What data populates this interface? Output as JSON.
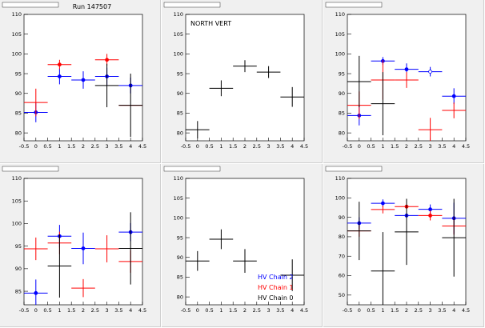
{
  "run_label": "Run 147507",
  "colors": {
    "chain0": "#000000",
    "chain1": "#ff0000",
    "chain2": "#0000ff"
  },
  "legend": [
    {
      "label": "HV Chain 2",
      "color": "#0000ff"
    },
    {
      "label": "HV Chain 1",
      "color": "#ff0000"
    },
    {
      "label": "HV Chain 0",
      "color": "#000000"
    }
  ],
  "chart_data": [
    {
      "type": "scatter",
      "title": "",
      "xlim": [
        -0.5,
        4.5
      ],
      "ylim": [
        78,
        110
      ],
      "xticks": [
        -0.5,
        0,
        0.5,
        1,
        1.5,
        2,
        2.5,
        3,
        3.5,
        4,
        4.5
      ],
      "yticks": [
        80,
        85,
        90,
        95,
        100,
        105,
        110
      ],
      "series": [
        {
          "color": "#0000ff",
          "points": [
            {
              "x": 0,
              "xerr": 0.5,
              "y": 85.2,
              "yerr": 2.5,
              "marker": true
            },
            {
              "x": 1,
              "xerr": 0.5,
              "y": 94.3,
              "yerr": 2.0,
              "marker": true
            },
            {
              "x": 2,
              "xerr": 0.5,
              "y": 93.4,
              "yerr": 2.2,
              "marker": true
            },
            {
              "x": 3,
              "xerr": 0.5,
              "y": 94.3,
              "yerr": 2.2,
              "marker": true
            },
            {
              "x": 4,
              "xerr": 0.5,
              "y": 92.0,
              "yerr": 2.0,
              "marker": true
            }
          ]
        },
        {
          "color": "#ff0000",
          "points": [
            {
              "x": 0,
              "xerr": 0.5,
              "y": 87.7,
              "yerr": 3.5,
              "marker": false
            },
            {
              "x": 1,
              "xerr": 0.5,
              "y": 97.3,
              "yerr": 1.2,
              "marker": true
            },
            {
              "x": 3,
              "xerr": 0.5,
              "y": 98.5,
              "yerr": 1.5,
              "marker": true
            },
            {
              "x": 4,
              "xerr": 0.5,
              "y": 87.0,
              "yerr": 0,
              "marker": false
            }
          ]
        },
        {
          "color": "#000000",
          "points": [
            {
              "x": 3,
              "xerr": 0.5,
              "y": 92.0,
              "yerr": 5.5,
              "marker": false
            },
            {
              "x": 4,
              "xerr": 0.5,
              "y": 87.0,
              "yerr": 8.0,
              "marker": false
            }
          ]
        }
      ]
    },
    {
      "type": "scatter",
      "title": "",
      "annotation": "NORTH VERT",
      "xlim": [
        -0.5,
        4.5
      ],
      "ylim": [
        78,
        110
      ],
      "xticks": [
        -0.5,
        0,
        0.5,
        1,
        1.5,
        2,
        2.5,
        3,
        3.5,
        4,
        4.5
      ],
      "yticks": [
        80,
        85,
        90,
        95,
        100,
        105,
        110
      ],
      "series": [
        {
          "color": "#000000",
          "points": [
            {
              "x": 0,
              "xerr": 0.5,
              "y": 80.8,
              "yerr": 2.2,
              "marker": false
            },
            {
              "x": 1,
              "xerr": 0.5,
              "y": 91.3,
              "yerr": 2.0,
              "marker": false
            },
            {
              "x": 2,
              "xerr": 0.5,
              "y": 96.9,
              "yerr": 1.5,
              "marker": false
            },
            {
              "x": 3,
              "xerr": 0.5,
              "y": 95.4,
              "yerr": 1.5,
              "marker": false
            },
            {
              "x": 4,
              "xerr": 0.5,
              "y": 89.1,
              "yerr": 2.5,
              "marker": false
            }
          ]
        }
      ]
    },
    {
      "type": "scatter",
      "title": "",
      "xlim": [
        -0.5,
        4.5
      ],
      "ylim": [
        78,
        110
      ],
      "xticks": [
        -0.5,
        0,
        0.5,
        1,
        1.5,
        2,
        2.5,
        3,
        3.5,
        4,
        4.5
      ],
      "yticks": [
        80,
        85,
        90,
        95,
        100,
        105,
        110
      ],
      "series": [
        {
          "color": "#0000ff",
          "points": [
            {
              "x": 0,
              "xerr": 0.5,
              "y": 84.4,
              "yerr": 2.5,
              "marker": true
            },
            {
              "x": 1,
              "xerr": 0.5,
              "y": 98.2,
              "yerr": 1.0,
              "marker": true
            },
            {
              "x": 2,
              "xerr": 0.5,
              "y": 96.1,
              "yerr": 1.5,
              "marker": true
            },
            {
              "x": 3,
              "xerr": 0.5,
              "y": 95.5,
              "yerr": 1.2,
              "marker": true,
              "hollow": true
            },
            {
              "x": 4,
              "xerr": 0.5,
              "y": 89.3,
              "yerr": 2.0,
              "marker": true
            }
          ]
        },
        {
          "color": "#ff0000",
          "points": [
            {
              "x": 0,
              "xerr": 0.5,
              "y": 87.0,
              "yerr": 3.5,
              "marker": false
            },
            {
              "x": 1,
              "xerr": 0.5,
              "y": 93.4,
              "yerr": 5.0,
              "marker": false
            },
            {
              "x": 2,
              "xerr": 0.5,
              "y": 93.4,
              "yerr": 2.0,
              "marker": false
            },
            {
              "x": 3,
              "xerr": 0.5,
              "y": 80.8,
              "yerr": 3.0,
              "marker": false
            },
            {
              "x": 4,
              "xerr": 0.5,
              "y": 85.7,
              "yerr": 2.0,
              "marker": false
            }
          ]
        },
        {
          "color": "#000000",
          "points": [
            {
              "x": 0,
              "xerr": 0.5,
              "y": 93.0,
              "yerr": 6.5,
              "marker": false
            },
            {
              "x": 1,
              "xerr": 0.5,
              "y": 87.4,
              "yerr": 8.0,
              "marker": false
            }
          ]
        }
      ]
    },
    {
      "type": "scatter",
      "title": "",
      "xlim": [
        -0.5,
        4.5
      ],
      "ylim": [
        82,
        110
      ],
      "xticks": [
        -0.5,
        0,
        0.5,
        1,
        1.5,
        2,
        2.5,
        3,
        3.5,
        4,
        4.5
      ],
      "yticks": [
        85,
        90,
        95,
        100,
        105,
        110
      ],
      "series": [
        {
          "color": "#0000ff",
          "points": [
            {
              "x": 0,
              "xerr": 0.5,
              "y": 84.6,
              "yerr": 3.0,
              "marker": true
            },
            {
              "x": 1,
              "xerr": 0.5,
              "y": 97.2,
              "yerr": 2.5,
              "marker": true
            },
            {
              "x": 2,
              "xerr": 0.5,
              "y": 94.5,
              "yerr": 3.5,
              "marker": true
            },
            {
              "x": 4,
              "xerr": 0.5,
              "y": 98.1,
              "yerr": 2.0,
              "marker": true
            }
          ]
        },
        {
          "color": "#ff0000",
          "points": [
            {
              "x": 0,
              "xerr": 0.5,
              "y": 94.4,
              "yerr": 2.5,
              "marker": false
            },
            {
              "x": 1,
              "xerr": 0.5,
              "y": 95.7,
              "yerr": 2.5,
              "marker": false
            },
            {
              "x": 2,
              "xerr": 0.5,
              "y": 85.7,
              "yerr": 2.0,
              "marker": false
            },
            {
              "x": 3,
              "xerr": 0.5,
              "y": 94.4,
              "yerr": 3.0,
              "marker": false
            },
            {
              "x": 4,
              "xerr": 0.5,
              "y": 91.6,
              "yerr": 2.5,
              "marker": false
            }
          ]
        },
        {
          "color": "#000000",
          "points": [
            {
              "x": 1,
              "xerr": 0.5,
              "y": 90.6,
              "yerr": 7.0,
              "marker": false
            },
            {
              "x": 4,
              "xerr": 0.5,
              "y": 94.5,
              "yerr": 8.0,
              "marker": false
            }
          ]
        }
      ]
    },
    {
      "type": "scatter",
      "title": "",
      "xlim": [
        -0.5,
        4.5
      ],
      "ylim": [
        78,
        110
      ],
      "xticks": [
        -0.5,
        0,
        0.5,
        1,
        1.5,
        2,
        2.5,
        3,
        3.5,
        4,
        4.5
      ],
      "yticks": [
        80,
        85,
        90,
        95,
        100,
        105,
        110
      ],
      "series": [
        {
          "color": "#000000",
          "points": [
            {
              "x": 0,
              "xerr": 0.5,
              "y": 89.1,
              "yerr": 2.5,
              "marker": false
            },
            {
              "x": 1,
              "xerr": 0.5,
              "y": 94.6,
              "yerr": 2.5,
              "marker": false
            },
            {
              "x": 2,
              "xerr": 0.5,
              "y": 89.1,
              "yerr": 3.0,
              "marker": false
            },
            {
              "x": 4,
              "xerr": 0.5,
              "y": 85.5,
              "yerr": 4.0,
              "marker": false
            }
          ]
        }
      ]
    },
    {
      "type": "scatter",
      "title": "",
      "xlim": [
        -0.5,
        4.5
      ],
      "ylim": [
        45,
        110
      ],
      "xticks": [
        -0.5,
        0,
        0.5,
        1,
        1.5,
        2,
        2.5,
        3,
        3.5,
        4,
        4.5
      ],
      "yticks": [
        50,
        60,
        70,
        80,
        90,
        100,
        110
      ],
      "series": [
        {
          "color": "#0000ff",
          "points": [
            {
              "x": 0,
              "xerr": 0.5,
              "y": 87.0,
              "yerr": 3.0,
              "marker": true
            },
            {
              "x": 1,
              "xerr": 0.5,
              "y": 97.2,
              "yerr": 2.0,
              "marker": true
            },
            {
              "x": 2,
              "xerr": 0.5,
              "y": 90.9,
              "yerr": 5.5,
              "marker": true
            },
            {
              "x": 3,
              "xerr": 0.5,
              "y": 94.1,
              "yerr": 2.5,
              "marker": true
            },
            {
              "x": 4,
              "xerr": 0.5,
              "y": 89.5,
              "yerr": 8.0,
              "marker": true
            }
          ]
        },
        {
          "color": "#ff0000",
          "points": [
            {
              "x": 0,
              "xerr": 0.5,
              "y": 83.0,
              "yerr": 3.0,
              "marker": false
            },
            {
              "x": 1,
              "xerr": 0.5,
              "y": 94.0,
              "yerr": 2.0,
              "marker": false
            },
            {
              "x": 2,
              "xerr": 0.5,
              "y": 95.5,
              "yerr": 2.0,
              "marker": true
            },
            {
              "x": 3,
              "xerr": 0.5,
              "y": 90.9,
              "yerr": 2.5,
              "marker": true
            },
            {
              "x": 4,
              "xerr": 0.5,
              "y": 85.5,
              "yerr": 4.5,
              "marker": false
            }
          ]
        },
        {
          "color": "#000000",
          "points": [
            {
              "x": 0,
              "xerr": 0.5,
              "y": 83.0,
              "yerr": 15.0,
              "marker": false
            },
            {
              "x": 1,
              "xerr": 0.5,
              "y": 62.4,
              "yerr": 20.0,
              "marker": false
            },
            {
              "x": 2,
              "xerr": 0.5,
              "y": 82.5,
              "yerr": 17.0,
              "marker": false
            },
            {
              "x": 4,
              "xerr": 0.5,
              "y": 79.5,
              "yerr": 20.0,
              "marker": false
            }
          ]
        }
      ]
    }
  ]
}
